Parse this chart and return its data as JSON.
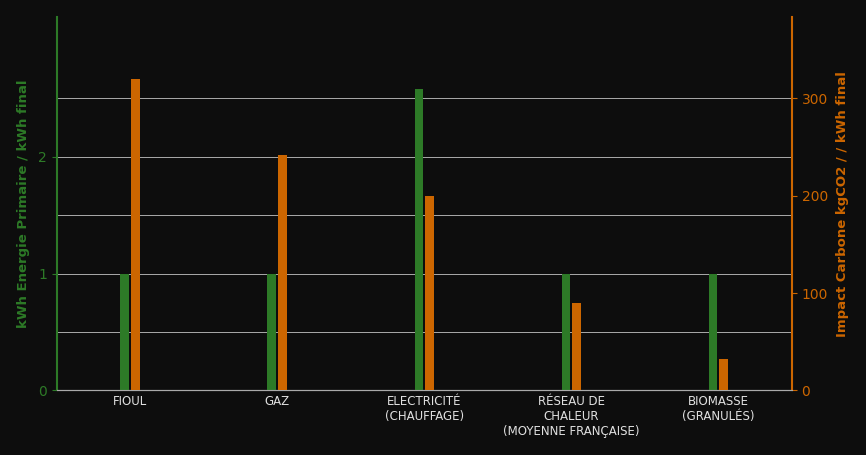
{
  "categories": [
    "FIOUL",
    "GAZ",
    "ELECTRICITÉ\n(CHAUFFAGE)",
    "RÉSEAU DE\nCHALEUR\n(MOYENNE FRANÇAISE)",
    "BIOMASSE\n(GRANULÉS)"
  ],
  "ep_values": [
    1.0,
    1.0,
    2.58,
    1.0,
    1.0
  ],
  "carbon_values": [
    320,
    242,
    200,
    90,
    32
  ],
  "green_color": "#2d7a27",
  "orange_color": "#cc6600",
  "ylabel_left": "kWh Energie Primaire / kWh final",
  "ylabel_right": "Impact Carbone kgCO2 / / kWh final",
  "ylim_left": [
    0,
    3.2
  ],
  "ylim_right": [
    0,
    384
  ],
  "yticks_left": [
    0,
    1,
    2
  ],
  "yticks_right": [
    0,
    100,
    200,
    300
  ],
  "background_color": "#0d0d0d",
  "text_color": "#e0e0e0",
  "grid_color": "#aaaaaa",
  "bar_width": 0.06,
  "figsize": [
    8.66,
    4.55
  ],
  "dpi": 100
}
